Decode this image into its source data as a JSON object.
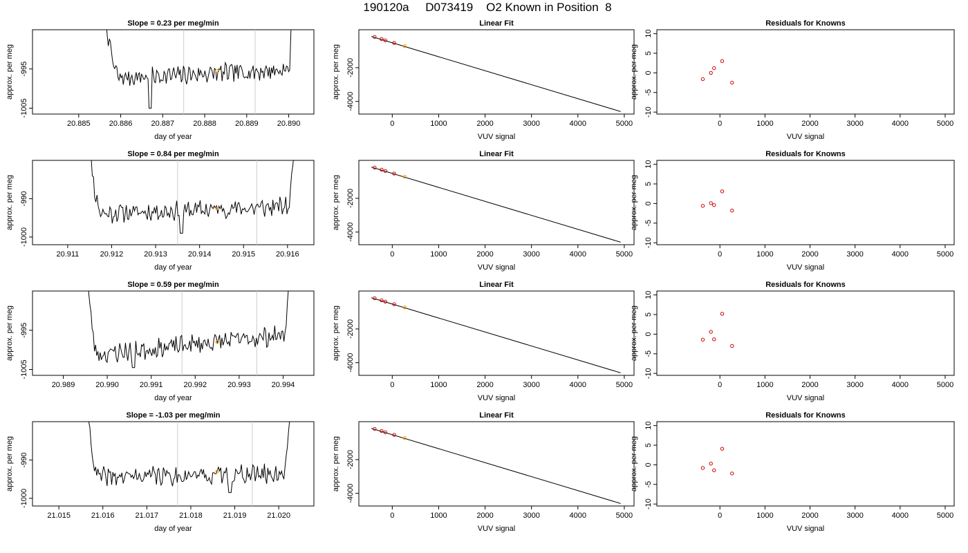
{
  "header": {
    "title": "190120a     D073419    O2 Known in Position  8"
  },
  "colors": {
    "trace": "#000000",
    "marker_vline": "#cccccc",
    "known_points": "#cc0000",
    "highlight_point": "#ff9900",
    "fit_line": "#000000"
  },
  "chart_data": [
    {
      "type": "line",
      "panel": "time-series",
      "row": 1,
      "title": "Slope =  0.23  per meg/min",
      "xlabel": "day of year",
      "ylabel": "approx. per meg",
      "xlim": [
        20.8839,
        20.8906
      ],
      "ylim": [
        -1006.5,
        -985
      ],
      "xticks": [
        "20.885",
        "20.886",
        "20.887",
        "20.888",
        "20.889",
        "20.890"
      ],
      "xtick_values": [
        20.885,
        20.886,
        20.887,
        20.888,
        20.889,
        20.89
      ],
      "yticks": [
        "-1005",
        "-995"
      ],
      "ytick_values": [
        -1005,
        -995
      ],
      "vertical_lines": [
        20.8875,
        20.8892
      ],
      "highlight_point": {
        "x": 20.8883,
        "y": -995.5
      },
      "segment": {
        "x_start": 20.8855,
        "x_end": 20.8901,
        "x_rise": 20.886,
        "x_fall": 20.89,
        "baseline_start": -997.5,
        "baseline_end": -995.2,
        "noise": 1.2,
        "seed": 7,
        "dips": [
          [
            20.8867,
            -1005
          ]
        ]
      }
    },
    {
      "type": "scatter",
      "panel": "linear-fit",
      "row": 1,
      "title": "Linear Fit",
      "xlabel": "VUV signal",
      "ylabel": "approx. per meg",
      "xlim": [
        -720,
        5210
      ],
      "ylim": [
        -4750,
        250
      ],
      "xticks": [
        "0",
        "1000",
        "2000",
        "3000",
        "4000",
        "5000"
      ],
      "xtick_values": [
        0,
        1000,
        2000,
        3000,
        4000,
        5000
      ],
      "yticks": [
        "-2000",
        "-4000"
      ],
      "ytick_values": [
        -2000,
        -4000
      ],
      "fit_line": {
        "x": [
          -450,
          4920
        ],
        "y": [
          -150,
          -4600
        ]
      },
      "points": [
        {
          "x": -380,
          "y": -180
        },
        {
          "x": -230,
          "y": -300
        },
        {
          "x": -150,
          "y": -380
        },
        {
          "x": 40,
          "y": -530
        }
      ],
      "highlight_points": [
        {
          "x": 270,
          "y": -720
        }
      ]
    },
    {
      "type": "scatter",
      "panel": "residuals",
      "row": 1,
      "title": "Residuals for Knowns",
      "xlabel": "VUV signal",
      "ylabel": "approx. per meg",
      "xlim": [
        -1400,
        5200
      ],
      "ylim": [
        -10.5,
        11
      ],
      "xticks": [
        "0",
        "1000",
        "2000",
        "3000",
        "4000",
        "5000"
      ],
      "xtick_values": [
        0,
        1000,
        2000,
        3000,
        4000,
        5000
      ],
      "yticks": [
        "-10",
        "-5",
        "0",
        "5",
        "10"
      ],
      "ytick_values": [
        -10,
        -5,
        0,
        5,
        10
      ],
      "points": [
        {
          "x": -380,
          "y": -1.6
        },
        {
          "x": -200,
          "y": 0.0
        },
        {
          "x": -130,
          "y": 1.2
        },
        {
          "x": 50,
          "y": 3.0
        },
        {
          "x": 270,
          "y": -2.5
        }
      ]
    },
    {
      "type": "line",
      "panel": "time-series",
      "row": 2,
      "title": "Slope =  0.84  per meg/min",
      "xlabel": "day of year",
      "ylabel": "approx. per meg",
      "xlim": [
        20.9102,
        20.9166
      ],
      "ylim": [
        -1002,
        -980
      ],
      "xticks": [
        "20.911",
        "20.912",
        "20.913",
        "20.914",
        "20.915",
        "20.916"
      ],
      "xtick_values": [
        20.911,
        20.912,
        20.913,
        20.914,
        20.915,
        20.916
      ],
      "yticks": [
        "-1000",
        "-990"
      ],
      "ytick_values": [
        -1000,
        -990
      ],
      "vertical_lines": [
        20.9135,
        20.9153
      ],
      "highlight_point": {
        "x": 20.9144,
        "y": -992.5
      },
      "segment": {
        "x_start": 20.9114,
        "x_end": 20.9162,
        "x_rise": 20.9118,
        "x_fall": 20.916,
        "baseline_start": -994,
        "baseline_end": -992,
        "noise": 1.3,
        "seed": 11,
        "dips": [
          [
            20.9136,
            -999
          ]
        ]
      }
    },
    {
      "type": "scatter",
      "panel": "linear-fit",
      "row": 2,
      "title": "Linear Fit",
      "xlabel": "VUV signal",
      "ylabel": "approx. per meg",
      "xlim": [
        -720,
        5210
      ],
      "ylim": [
        -4750,
        250
      ],
      "xticks": [
        "0",
        "1000",
        "2000",
        "3000",
        "4000",
        "5000"
      ],
      "xtick_values": [
        0,
        1000,
        2000,
        3000,
        4000,
        5000
      ],
      "yticks": [
        "-2000",
        "-4000"
      ],
      "ytick_values": [
        -2000,
        -4000
      ],
      "fit_line": {
        "x": [
          -450,
          4920
        ],
        "y": [
          -150,
          -4600
        ]
      },
      "points": [
        {
          "x": -380,
          "y": -180
        },
        {
          "x": -230,
          "y": -300
        },
        {
          "x": -150,
          "y": -380
        },
        {
          "x": 40,
          "y": -530
        }
      ],
      "highlight_points": [
        {
          "x": 270,
          "y": -720
        }
      ]
    },
    {
      "type": "scatter",
      "panel": "residuals",
      "row": 2,
      "title": "Residuals for Knowns",
      "xlabel": "VUV signal",
      "ylabel": "approx. per meg",
      "xlim": [
        -1400,
        5200
      ],
      "ylim": [
        -10.5,
        11
      ],
      "xticks": [
        "0",
        "1000",
        "2000",
        "3000",
        "4000",
        "5000"
      ],
      "xtick_values": [
        0,
        1000,
        2000,
        3000,
        4000,
        5000
      ],
      "yticks": [
        "-10",
        "-5",
        "0",
        "5",
        "10"
      ],
      "ytick_values": [
        -10,
        -5,
        0,
        5,
        10
      ],
      "points": [
        {
          "x": -380,
          "y": -0.6
        },
        {
          "x": -200,
          "y": 0.1
        },
        {
          "x": -130,
          "y": -0.4
        },
        {
          "x": 50,
          "y": 3.1
        },
        {
          "x": 270,
          "y": -1.8
        }
      ]
    },
    {
      "type": "line",
      "panel": "time-series",
      "row": 3,
      "title": "Slope =  0.59  per meg/min",
      "xlabel": "day of year",
      "ylabel": "approx. per meg",
      "xlim": [
        20.9883,
        20.9947
      ],
      "ylim": [
        -1006.5,
        -985
      ],
      "xticks": [
        "20.989",
        "20.990",
        "20.991",
        "20.992",
        "20.993",
        "20.994"
      ],
      "xtick_values": [
        20.989,
        20.99,
        20.991,
        20.992,
        20.993,
        20.994
      ],
      "yticks": [
        "-1005",
        "-995"
      ],
      "ytick_values": [
        -1005,
        -995
      ],
      "vertical_lines": [
        20.9917,
        20.9934
      ],
      "highlight_point": {
        "x": 20.9925,
        "y": -998
      },
      "segment": {
        "x_start": 20.9895,
        "x_end": 20.9942,
        "x_rise": 20.9898,
        "x_fall": 20.994,
        "baseline_start": -1001.5,
        "baseline_end": -996,
        "noise": 1.3,
        "seed": 23,
        "dips": [
          [
            20.9906,
            -1004.5
          ]
        ]
      }
    },
    {
      "type": "scatter",
      "panel": "linear-fit",
      "row": 3,
      "title": "Linear Fit",
      "xlabel": "VUV signal",
      "ylabel": "approx. per meg",
      "xlim": [
        -720,
        5210
      ],
      "ylim": [
        -4750,
        250
      ],
      "xticks": [
        "0",
        "1000",
        "2000",
        "3000",
        "4000",
        "5000"
      ],
      "xtick_values": [
        0,
        1000,
        2000,
        3000,
        4000,
        5000
      ],
      "yticks": [
        "-2000",
        "-4000"
      ],
      "ytick_values": [
        -2000,
        -4000
      ],
      "fit_line": {
        "x": [
          -450,
          4920
        ],
        "y": [
          -150,
          -4600
        ]
      },
      "points": [
        {
          "x": -380,
          "y": -180
        },
        {
          "x": -230,
          "y": -300
        },
        {
          "x": -150,
          "y": -380
        },
        {
          "x": 40,
          "y": -530
        }
      ],
      "highlight_points": [
        {
          "x": 270,
          "y": -720
        }
      ]
    },
    {
      "type": "scatter",
      "panel": "residuals",
      "row": 3,
      "title": "Residuals for Knowns",
      "xlabel": "VUV signal",
      "ylabel": "approx. per meg",
      "xlim": [
        -1400,
        5200
      ],
      "ylim": [
        -10.5,
        11
      ],
      "xticks": [
        "0",
        "1000",
        "2000",
        "3000",
        "4000",
        "5000"
      ],
      "xtick_values": [
        0,
        1000,
        2000,
        3000,
        4000,
        5000
      ],
      "yticks": [
        "-10",
        "-5",
        "0",
        "5",
        "10"
      ],
      "ytick_values": [
        -10,
        -5,
        0,
        5,
        10
      ],
      "points": [
        {
          "x": -380,
          "y": -1.4
        },
        {
          "x": -200,
          "y": 0.6
        },
        {
          "x": -130,
          "y": -1.3
        },
        {
          "x": 50,
          "y": 5.2
        },
        {
          "x": 270,
          "y": -3.0
        }
      ]
    },
    {
      "type": "line",
      "panel": "time-series",
      "row": 4,
      "title": "Slope =  -1.03  per meg/min",
      "xlabel": "day of year",
      "ylabel": "approx. per meg",
      "xlim": [
        21.0144,
        21.0208
      ],
      "ylim": [
        -1002,
        -980
      ],
      "xticks": [
        "21.015",
        "21.016",
        "21.017",
        "21.018",
        "21.019",
        "21.020"
      ],
      "xtick_values": [
        21.015,
        21.016,
        21.017,
        21.018,
        21.019,
        21.02
      ],
      "yticks": [
        "-1000",
        "-990"
      ],
      "ytick_values": [
        -1000,
        -990
      ],
      "vertical_lines": [
        21.0177,
        21.0194
      ],
      "highlight_point": {
        "x": 21.0186,
        "y": -993
      },
      "segment": {
        "x_start": 21.0156,
        "x_end": 21.0203,
        "x_rise": 21.0159,
        "x_fall": 21.0201,
        "baseline_start": -994.5,
        "baseline_end": -993.5,
        "noise": 1.3,
        "seed": 41,
        "dips": [
          [
            21.0189,
            -998.5
          ]
        ]
      }
    },
    {
      "type": "scatter",
      "panel": "linear-fit",
      "row": 4,
      "title": "Linear Fit",
      "xlabel": "VUV signal",
      "ylabel": "approx. per meg",
      "xlim": [
        -720,
        5210
      ],
      "ylim": [
        -4750,
        250
      ],
      "xticks": [
        "0",
        "1000",
        "2000",
        "3000",
        "4000",
        "5000"
      ],
      "xtick_values": [
        0,
        1000,
        2000,
        3000,
        4000,
        5000
      ],
      "yticks": [
        "-2000",
        "-4000"
      ],
      "ytick_values": [
        -2000,
        -4000
      ],
      "fit_line": {
        "x": [
          -450,
          4920
        ],
        "y": [
          -150,
          -4600
        ]
      },
      "points": [
        {
          "x": -380,
          "y": -180
        },
        {
          "x": -230,
          "y": -300
        },
        {
          "x": -150,
          "y": -380
        },
        {
          "x": 40,
          "y": -530
        }
      ],
      "highlight_points": [
        {
          "x": 270,
          "y": -720
        }
      ]
    },
    {
      "type": "scatter",
      "panel": "residuals",
      "row": 4,
      "title": "Residuals for Knowns",
      "xlabel": "VUV signal",
      "ylabel": "approx. per meg",
      "xlim": [
        -1400,
        5200
      ],
      "ylim": [
        -10.5,
        11
      ],
      "xticks": [
        "0",
        "1000",
        "2000",
        "3000",
        "4000",
        "5000"
      ],
      "xtick_values": [
        0,
        1000,
        2000,
        3000,
        4000,
        5000
      ],
      "yticks": [
        "-10",
        "-5",
        "0",
        "5",
        "10"
      ],
      "ytick_values": [
        -10,
        -5,
        0,
        5,
        10
      ],
      "points": [
        {
          "x": -380,
          "y": -0.8
        },
        {
          "x": -200,
          "y": 0.3
        },
        {
          "x": -130,
          "y": -1.4
        },
        {
          "x": 50,
          "y": 4.1
        },
        {
          "x": 270,
          "y": -2.2
        }
      ]
    }
  ]
}
